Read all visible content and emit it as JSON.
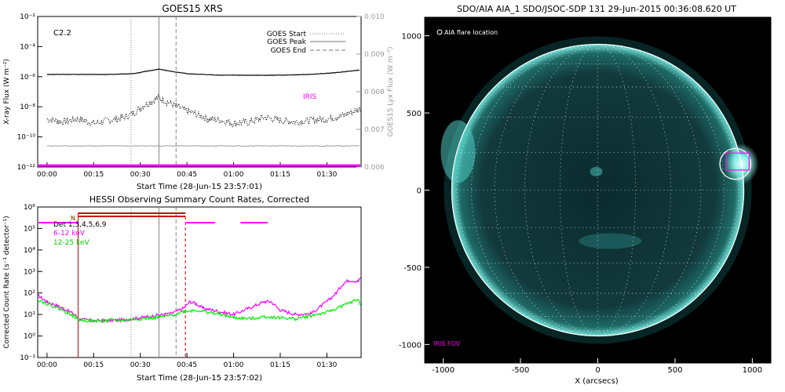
{
  "chart_data": [
    {
      "type": "line",
      "title": "GOES15 XRS",
      "xlabel": "Start Time (28-Jun-15 23:57:01)",
      "ylabel": "X-ray Flux (W m⁻²)",
      "ylabel_right": "GOES15 Lyx Flux (W m⁻²)",
      "xticks": [
        "00:00",
        "00:15",
        "00:30",
        "00:45",
        "01:00",
        "01:15",
        "01:30"
      ],
      "x_minutes": [
        0,
        15,
        30,
        45,
        60,
        75,
        90
      ],
      "xlim": [
        -3,
        101
      ],
      "ylim_log": [
        -12,
        -2
      ],
      "yticks": [
        "10⁻²",
        "10⁻⁴",
        "10⁻⁶",
        "10⁻⁸",
        "10⁻¹⁰",
        "10⁻¹²"
      ],
      "yticks_right": [
        "0.010",
        "0.009",
        "0.008",
        "0.007",
        "0.006"
      ],
      "y2lim": [
        0.006,
        0.01
      ],
      "flare_class": "C2.2",
      "iris_label": "IRIS",
      "legend": [
        {
          "label": "GOES Start",
          "style": "dotted"
        },
        {
          "label": "GOES Peak",
          "style": "solid"
        },
        {
          "label": "GOES End",
          "style": "dashed"
        }
      ],
      "markers_minutes": {
        "start": 27,
        "peak": 36,
        "end": 41.5
      },
      "series": [
        {
          "name": "long",
          "color": "#000000",
          "x": [
            0,
            10,
            20,
            28,
            33,
            36,
            40,
            45,
            55,
            65,
            75,
            85,
            92,
            101
          ],
          "y_log": [
            -5.85,
            -5.85,
            -5.85,
            -5.8,
            -5.6,
            -5.5,
            -5.65,
            -5.8,
            -5.9,
            -5.9,
            -5.9,
            -5.85,
            -5.75,
            -5.55
          ]
        },
        {
          "name": "short",
          "color": "#000000",
          "x": [
            0,
            5,
            10,
            15,
            20,
            25,
            28,
            31,
            34,
            36,
            38,
            41,
            44,
            48,
            52,
            56,
            60,
            65,
            70,
            75,
            80,
            85,
            90,
            95,
            101
          ],
          "y_log": [
            -8.8,
            -9.0,
            -8.8,
            -9.1,
            -8.9,
            -8.7,
            -8.4,
            -7.9,
            -7.6,
            -7.4,
            -7.6,
            -7.9,
            -8.2,
            -8.5,
            -8.8,
            -8.9,
            -9.1,
            -9.0,
            -8.7,
            -8.9,
            -9.0,
            -8.9,
            -8.8,
            -8.6,
            -8.1
          ]
        },
        {
          "name": "lya",
          "color": "#9a9a9a",
          "x": [
            0,
            101
          ],
          "y_log": [
            -10.6,
            -10.6
          ]
        },
        {
          "name": "iris",
          "color": "#ff00ff",
          "x": [
            -3,
            101
          ],
          "y_log": [
            -11.9,
            -11.9
          ]
        }
      ]
    },
    {
      "type": "line",
      "title": "HESSI Observing Summary Count Rates, Corrected",
      "xlabel": "Start Time (28-Jun-15 23:57:02)",
      "ylabel": "Corrected Count Rate (s⁻¹ detector⁻¹)",
      "xticks": [
        "00:00",
        "00:15",
        "00:30",
        "00:45",
        "01:00",
        "01:15",
        "01:30"
      ],
      "x_minutes": [
        0,
        15,
        30,
        45,
        60,
        75,
        90
      ],
      "xlim": [
        -3,
        101
      ],
      "ylim_log": [
        -1,
        6
      ],
      "yticks": [
        "10⁶",
        "10⁵",
        "10⁴",
        "10³",
        "10²",
        "10¹",
        "10⁰",
        "10⁻¹"
      ],
      "legend": [
        {
          "label": "Det 1,3,4,5,6,9",
          "color": "#000000"
        },
        {
          "label": "6-12 keV",
          "color": "#ff00ff"
        },
        {
          "label": "12-25 keV",
          "color": "#00ee00"
        }
      ],
      "night_label": "N",
      "night_interval": [
        10,
        44.5
      ],
      "saa_segments": [
        [
          -3,
          10
        ],
        [
          44.5,
          54
        ],
        [
          62,
          71
        ]
      ],
      "markers_minutes": {
        "start": 27,
        "peak": 36,
        "end": 41.5,
        "attenuator": 44.5
      },
      "series": [
        {
          "name": "6-12 keV",
          "color": "#ff00ff",
          "x": [
            -3,
            0,
            5,
            9,
            10,
            15,
            20,
            25,
            30,
            35,
            40,
            44,
            46,
            48,
            50,
            55,
            60,
            65,
            70,
            72,
            75,
            80,
            85,
            90,
            93,
            95,
            97,
            100,
            101
          ],
          "y_log": [
            1.9,
            1.6,
            1.3,
            1.0,
            0.8,
            0.7,
            0.72,
            0.75,
            0.85,
            0.95,
            1.05,
            1.3,
            1.6,
            1.5,
            1.3,
            1.15,
            1.0,
            1.3,
            1.6,
            1.6,
            1.2,
            1.0,
            1.05,
            1.6,
            2.0,
            2.4,
            2.6,
            2.55,
            2.7
          ]
        },
        {
          "name": "12-25 keV",
          "color": "#00ee00",
          "x": [
            -3,
            0,
            5,
            9,
            10,
            15,
            20,
            25,
            30,
            35,
            40,
            44,
            48,
            52,
            56,
            60,
            65,
            70,
            75,
            80,
            85,
            90,
            95,
            100,
            101
          ],
          "y_log": [
            1.7,
            1.5,
            1.2,
            0.9,
            0.75,
            0.7,
            0.72,
            0.74,
            0.8,
            0.85,
            0.95,
            1.15,
            1.2,
            1.1,
            1.0,
            0.85,
            0.8,
            0.9,
            0.85,
            0.8,
            0.95,
            1.1,
            1.4,
            1.7,
            1.4
          ]
        }
      ]
    },
    {
      "type": "heatmap",
      "title": "SDO/AIA AIA_1 SDO/JSOC-SDP 131 29-Jun-2015 00:36:08.620 UT",
      "xlabel": "X (arcsecs)",
      "ylabel": "",
      "xlim": [
        -1120,
        1120
      ],
      "ylim": [
        -1120,
        1120
      ],
      "xticks": [
        "-1000",
        "-500",
        "0",
        "500",
        "1000"
      ],
      "yticks": [
        "1000",
        "500",
        "0",
        "-500",
        "-1000"
      ],
      "flare_location_label": "AIA flare location",
      "iris_fov_label": "IRIS FOV",
      "solar_radius_arcsec": 945,
      "flare_center": [
        890,
        170
      ],
      "flare_circle_radius": 100,
      "iris_fov": [
        [
          830,
          130
        ],
        [
          980,
          240
        ]
      ],
      "colors": {
        "disk": "#0f3438",
        "limb": "#5ad6cc",
        "background": "#000000",
        "grid": "#ffffff",
        "fov": "#ff00ff"
      }
    }
  ]
}
